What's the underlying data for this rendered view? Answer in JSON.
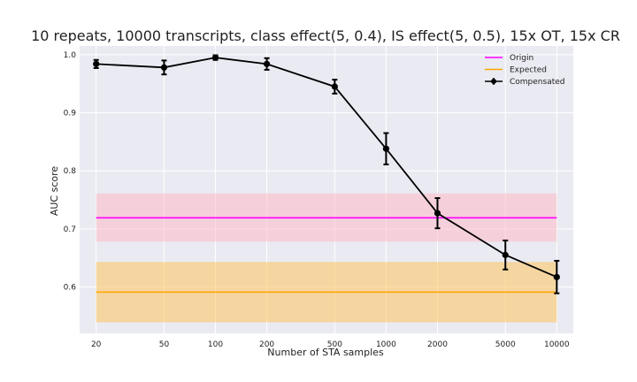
{
  "chart_data": {
    "type": "line",
    "title": "10 repeats, 10000 transcripts, class effect(5, 0.4), IS effect(5, 0.5), 15x OT, 15x CR",
    "xlabel": "Number of STA samples",
    "ylabel": "AUC score",
    "xscale": "log",
    "xlim": [
      16,
      12500
    ],
    "ylim": [
      0.52,
      1.015
    ],
    "x_ticks": [
      20,
      50,
      100,
      200,
      500,
      1000,
      2000,
      5000,
      10000
    ],
    "x_tick_labels": [
      "20",
      "50",
      "100",
      "200",
      "500",
      "1000",
      "2000",
      "5000",
      "10000"
    ],
    "y_ticks": [
      0.6,
      0.7,
      0.8,
      0.9,
      1.0
    ],
    "y_tick_labels": [
      "0.6",
      "0.7",
      "0.8",
      "0.9",
      "1.0"
    ],
    "grid": true,
    "legend_position": "top-right",
    "series": [
      {
        "name": "Origin",
        "kind": "line",
        "color": "#ff00ff",
        "band_color": "#ffb6c1",
        "x": [
          20,
          10000
        ],
        "y": [
          0.719,
          0.719
        ],
        "band": [
          0.678,
          0.761
        ]
      },
      {
        "name": "Expected",
        "kind": "line",
        "color": "#ffa500",
        "band_color": "#ffc04d",
        "x": [
          20,
          10000
        ],
        "y": [
          0.591,
          0.591
        ],
        "band": [
          0.539,
          0.643
        ]
      },
      {
        "name": "Compensated",
        "kind": "errorbar",
        "color": "#000000",
        "x": [
          20,
          50,
          100,
          200,
          500,
          1000,
          2000,
          5000,
          10000
        ],
        "y": [
          0.984,
          0.978,
          0.995,
          0.984,
          0.945,
          0.838,
          0.727,
          0.655,
          0.617
        ],
        "yerr": [
          0.007,
          0.012,
          0.004,
          0.01,
          0.012,
          0.027,
          0.026,
          0.025,
          0.028
        ]
      }
    ]
  }
}
